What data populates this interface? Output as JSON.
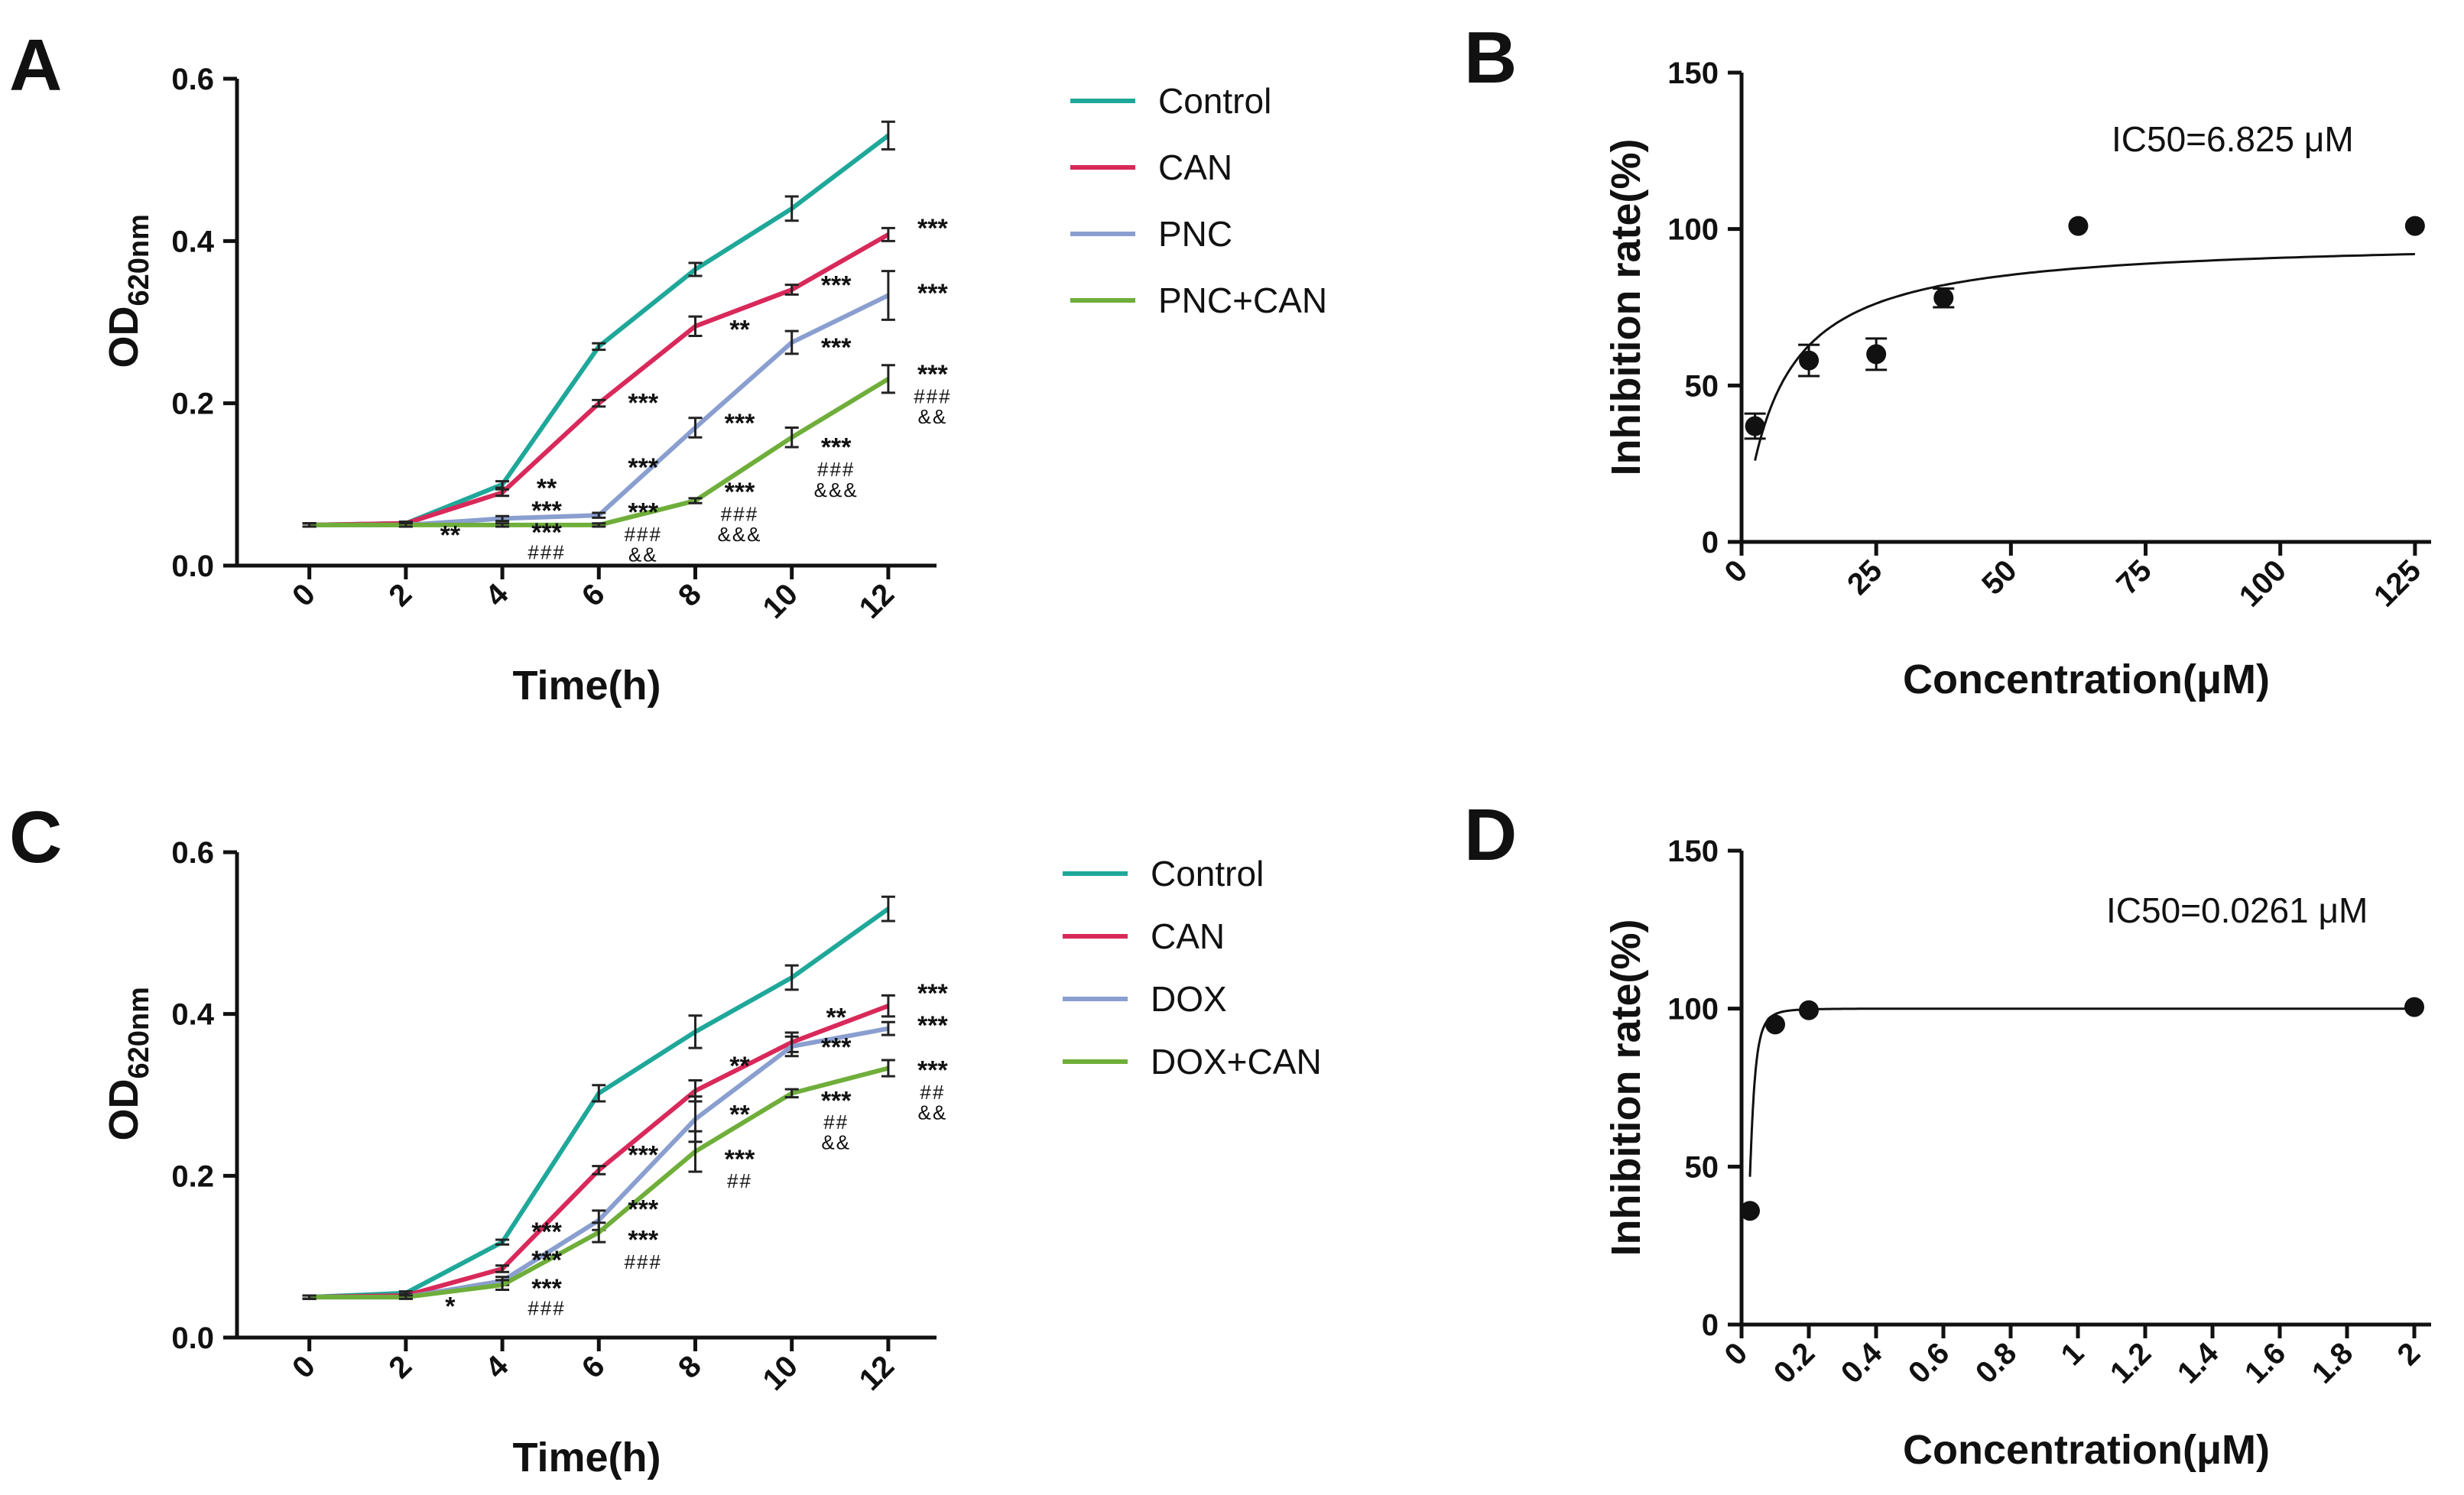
{
  "chart_data": [
    {
      "panel": "A",
      "type": "line",
      "xlabel": "Time(h)",
      "ylabel": "OD",
      "ylabel_sub": "620nm",
      "x": [
        0,
        2,
        4,
        6,
        8,
        10,
        12
      ],
      "xlim": [
        -1.5,
        13
      ],
      "ylim": [
        0,
        0.6
      ],
      "yticks": [
        0.0,
        0.2,
        0.4,
        0.6
      ],
      "yticklabels": [
        "0.0",
        "0.2",
        "0.4",
        "0.6"
      ],
      "series": [
        {
          "name": "Control",
          "color": "#1fa89a",
          "values": [
            0.05,
            0.052,
            0.1,
            0.27,
            0.365,
            0.44,
            0.53
          ],
          "errors": [
            0.002,
            0.002,
            0.004,
            0.004,
            0.008,
            0.015,
            0.017
          ]
        },
        {
          "name": "CAN",
          "color": "#d8295a",
          "values": [
            0.05,
            0.052,
            0.09,
            0.2,
            0.295,
            0.34,
            0.408
          ],
          "errors": [
            0.002,
            0.002,
            0.004,
            0.004,
            0.012,
            0.006,
            0.008
          ]
        },
        {
          "name": "PNC",
          "color": "#8a9fd0",
          "values": [
            0.05,
            0.05,
            0.058,
            0.062,
            0.17,
            0.275,
            0.333
          ],
          "errors": [
            0.002,
            0.002,
            0.003,
            0.003,
            0.012,
            0.014,
            0.03
          ]
        },
        {
          "name": "PNC+CAN",
          "color": "#6fae3a",
          "values": [
            0.05,
            0.05,
            0.05,
            0.05,
            0.08,
            0.158,
            0.23
          ],
          "errors": [
            0.002,
            0.002,
            0.002,
            0.002,
            0.003,
            0.012,
            0.017
          ]
        }
      ],
      "annotations": [
        {
          "x": 2,
          "y": 0.027,
          "text": "**",
          "cls": "sig"
        },
        {
          "x": 4,
          "y": 0.085,
          "text": "**",
          "cls": "sig"
        },
        {
          "x": 4,
          "y": 0.057,
          "text": "***",
          "cls": "sig"
        },
        {
          "x": 4,
          "y": 0.03,
          "text": "***",
          "cls": "sig"
        },
        {
          "x": 4,
          "y": 0.008,
          "text": "###",
          "cls": "sigsmall"
        },
        {
          "x": 6,
          "y": 0.19,
          "text": "***",
          "cls": "sig"
        },
        {
          "x": 6,
          "y": 0.11,
          "text": "***",
          "cls": "sig"
        },
        {
          "x": 6,
          "y": 0.055,
          "text": "***",
          "cls": "sig"
        },
        {
          "x": 6,
          "y": 0.03,
          "text": "###",
          "cls": "sigsmall"
        },
        {
          "x": 6,
          "y": 0.005,
          "text": "&&",
          "cls": "sigsmall"
        },
        {
          "x": 8,
          "y": 0.28,
          "text": "**",
          "cls": "sig"
        },
        {
          "x": 8,
          "y": 0.165,
          "text": "***",
          "cls": "sig"
        },
        {
          "x": 8,
          "y": 0.08,
          "text": "***",
          "cls": "sig"
        },
        {
          "x": 8,
          "y": 0.055,
          "text": "###",
          "cls": "sigsmall"
        },
        {
          "x": 8,
          "y": 0.03,
          "text": "&&&",
          "cls": "sigsmall"
        },
        {
          "x": 10,
          "y": 0.335,
          "text": "***",
          "cls": "sig"
        },
        {
          "x": 10,
          "y": 0.258,
          "text": "***",
          "cls": "sig"
        },
        {
          "x": 10,
          "y": 0.135,
          "text": "***",
          "cls": "sig"
        },
        {
          "x": 10,
          "y": 0.11,
          "text": "###",
          "cls": "sigsmall"
        },
        {
          "x": 10,
          "y": 0.085,
          "text": "&&&",
          "cls": "sigsmall"
        },
        {
          "x": 12,
          "y": 0.405,
          "text": "***",
          "cls": "sig"
        },
        {
          "x": 12,
          "y": 0.325,
          "text": "***",
          "cls": "sig"
        },
        {
          "x": 12,
          "y": 0.225,
          "text": "***",
          "cls": "sig"
        },
        {
          "x": 12,
          "y": 0.2,
          "text": "###",
          "cls": "sigsmall"
        },
        {
          "x": 12,
          "y": 0.175,
          "text": "&&",
          "cls": "sigsmall"
        }
      ]
    },
    {
      "panel": "B",
      "type": "scatter",
      "xlabel": "Concentration(μM)",
      "ylabel": "Inhibition rate(%)",
      "xlim": [
        0,
        128
      ],
      "ylim": [
        0,
        150
      ],
      "xticks": [
        0,
        25,
        50,
        75,
        100,
        125
      ],
      "yticks": [
        0,
        50,
        100,
        150
      ],
      "x": [
        2.5,
        12.5,
        25,
        37.5,
        62.5,
        125
      ],
      "y": [
        37,
        58,
        60,
        78,
        101,
        101
      ],
      "errors": [
        4,
        5,
        5,
        3,
        0,
        0
      ],
      "fit": {
        "ic50": 6.825,
        "top": 97,
        "hill": 1.0,
        "x_start": 2.5,
        "x_end": 125
      },
      "annotation": "IC50=6.825 μM"
    },
    {
      "panel": "C",
      "type": "line",
      "xlabel": "Time(h)",
      "ylabel": "OD",
      "ylabel_sub": "620nm",
      "x": [
        0,
        2,
        4,
        6,
        8,
        10,
        12
      ],
      "xlim": [
        -1.5,
        13
      ],
      "ylim": [
        0,
        0.6
      ],
      "yticks": [
        0.0,
        0.2,
        0.4,
        0.6
      ],
      "yticklabels": [
        "0.0",
        "0.2",
        "0.4",
        "0.6"
      ],
      "series": [
        {
          "name": "Control",
          "color": "#1fa89a",
          "values": [
            0.05,
            0.055,
            0.118,
            0.302,
            0.378,
            0.445,
            0.53
          ],
          "errors": [
            0.002,
            0.002,
            0.003,
            0.01,
            0.02,
            0.015,
            0.015
          ]
        },
        {
          "name": "CAN",
          "color": "#d8295a",
          "values": [
            0.05,
            0.052,
            0.085,
            0.207,
            0.305,
            0.365,
            0.41
          ],
          "errors": [
            0.002,
            0.002,
            0.004,
            0.005,
            0.013,
            0.012,
            0.013
          ]
        },
        {
          "name": "DOX",
          "color": "#8a9fd0",
          "values": [
            0.05,
            0.05,
            0.07,
            0.145,
            0.27,
            0.36,
            0.382
          ],
          "errors": [
            0.002,
            0.002,
            0.005,
            0.012,
            0.028,
            0.012,
            0.008
          ]
        },
        {
          "name": "DOX+CAN",
          "color": "#6fae3a",
          "values": [
            0.05,
            0.05,
            0.065,
            0.13,
            0.23,
            0.302,
            0.333
          ],
          "errors": [
            0.002,
            0.002,
            0.006,
            0.012,
            0.025,
            0.005,
            0.01
          ]
        }
      ],
      "annotations": [
        {
          "x": 2,
          "y": 0.028,
          "text": "*",
          "cls": "sig"
        },
        {
          "x": 4,
          "y": 0.12,
          "text": "***",
          "cls": "sig"
        },
        {
          "x": 4,
          "y": 0.085,
          "text": "***",
          "cls": "sig"
        },
        {
          "x": 4,
          "y": 0.05,
          "text": "***",
          "cls": "sig"
        },
        {
          "x": 4,
          "y": 0.028,
          "text": "###",
          "cls": "sigsmall"
        },
        {
          "x": 6,
          "y": 0.215,
          "text": "***",
          "cls": "sig"
        },
        {
          "x": 6,
          "y": 0.148,
          "text": "***",
          "cls": "sig"
        },
        {
          "x": 6,
          "y": 0.11,
          "text": "***",
          "cls": "sig"
        },
        {
          "x": 6,
          "y": 0.085,
          "text": "###",
          "cls": "sigsmall"
        },
        {
          "x": 8,
          "y": 0.325,
          "text": "**",
          "cls": "sig"
        },
        {
          "x": 8,
          "y": 0.265,
          "text": "**",
          "cls": "sig"
        },
        {
          "x": 8,
          "y": 0.21,
          "text": "***",
          "cls": "sig"
        },
        {
          "x": 8,
          "y": 0.185,
          "text": "##",
          "cls": "sigsmall"
        },
        {
          "x": 10,
          "y": 0.385,
          "text": "**",
          "cls": "sig"
        },
        {
          "x": 10,
          "y": 0.348,
          "text": "***",
          "cls": "sig"
        },
        {
          "x": 10,
          "y": 0.282,
          "text": "***",
          "cls": "sig"
        },
        {
          "x": 10,
          "y": 0.258,
          "text": "##",
          "cls": "sigsmall"
        },
        {
          "x": 10,
          "y": 0.233,
          "text": "&&",
          "cls": "sigsmall"
        },
        {
          "x": 12,
          "y": 0.415,
          "text": "***",
          "cls": "sig"
        },
        {
          "x": 12,
          "y": 0.375,
          "text": "***",
          "cls": "sig"
        },
        {
          "x": 12,
          "y": 0.32,
          "text": "***",
          "cls": "sig"
        },
        {
          "x": 12,
          "y": 0.295,
          "text": "##",
          "cls": "sigsmall"
        },
        {
          "x": 12,
          "y": 0.27,
          "text": "&&",
          "cls": "sigsmall"
        }
      ]
    },
    {
      "panel": "D",
      "type": "scatter",
      "xlabel": "Concentration(μM)",
      "ylabel": "Inhibition rate(%)",
      "xlim": [
        0,
        2.05
      ],
      "ylim": [
        0,
        150
      ],
      "xticks": [
        0.0,
        0.2,
        0.4,
        0.6,
        0.8,
        1.0,
        1.2,
        1.4,
        1.6,
        1.8,
        2.0
      ],
      "yticks": [
        0,
        50,
        100,
        150
      ],
      "x": [
        0.025,
        0.1,
        0.2,
        2.0
      ],
      "y": [
        36,
        95,
        99.5,
        100.5
      ],
      "errors": [
        0,
        0,
        0,
        0
      ],
      "fit": {
        "ic50": 0.0261,
        "top": 100,
        "hill": 3.0,
        "x_start": 0.025,
        "x_end": 2.0
      },
      "annotation": "IC50=0.0261 μM"
    }
  ]
}
